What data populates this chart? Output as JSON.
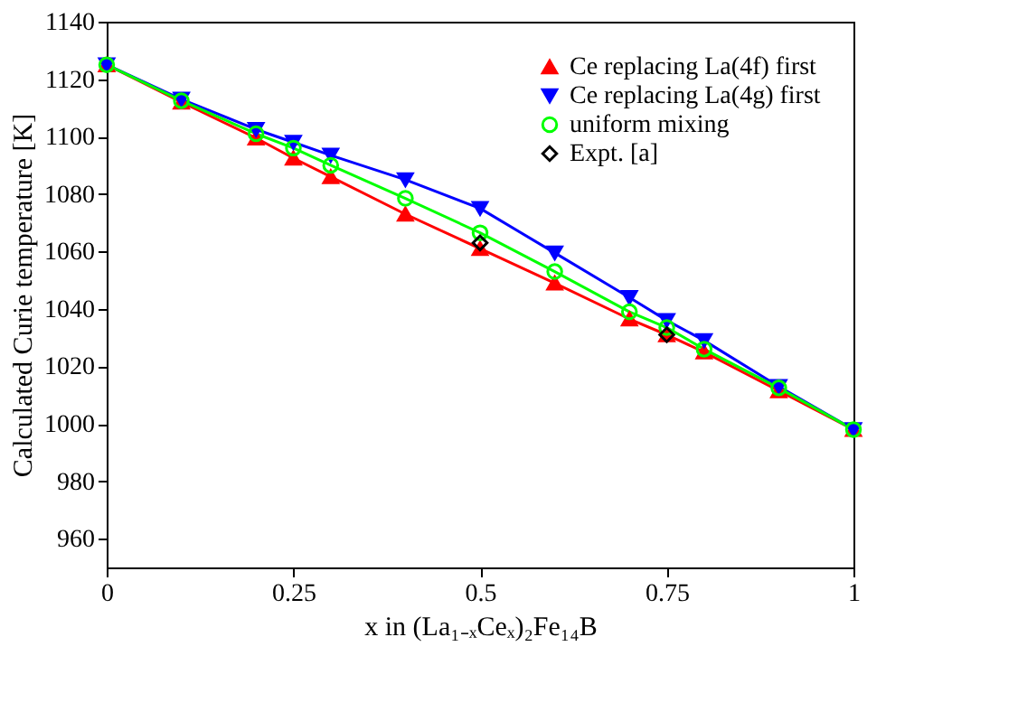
{
  "chart_data": {
    "type": "line",
    "xlabel": "x in (La₁₋ₓCeₓ)₂Fe₁₄B",
    "ylabel": "Calculated Curie temperature [K]",
    "xlim": [
      0,
      1
    ],
    "xticks": [
      0,
      0.25,
      0.5,
      0.75,
      1
    ],
    "ylim": [
      950,
      1140
    ],
    "yticks": [
      960,
      980,
      1000,
      1020,
      1040,
      1060,
      1080,
      1100,
      1120,
      1140
    ],
    "grid": false,
    "legend": "top right",
    "series": [
      {
        "name": "Ce replacing La(4f) first",
        "color": "#ff0000",
        "marker": "triangle",
        "x": [
          0,
          0.1,
          0.2,
          0.25,
          0.3,
          0.4,
          0.5,
          0.6,
          0.7,
          0.75,
          0.8,
          0.9,
          1
        ],
        "values": [
          1125,
          1112,
          1099.5,
          1092.5,
          1086,
          1073,
          1061,
          1049,
          1036.5,
          1031,
          1025,
          1011.5,
          998
        ]
      },
      {
        "name": "Ce replacing La(4g) first",
        "color": "#0000ff",
        "marker": "triangle-down",
        "x": [
          0,
          0.1,
          0.2,
          0.25,
          0.3,
          0.4,
          0.5,
          0.6,
          0.7,
          0.75,
          0.8,
          0.9,
          1
        ],
        "values": [
          1125,
          1113,
          1102.5,
          1098,
          1093.5,
          1085,
          1075,
          1059.5,
          1044,
          1036,
          1029,
          1013,
          998
        ]
      },
      {
        "name": "uniform mixing",
        "color": "#00ff00",
        "marker": "circle",
        "x": [
          0,
          0.1,
          0.2,
          0.25,
          0.3,
          0.4,
          0.5,
          0.6,
          0.7,
          0.75,
          0.8,
          0.9,
          1
        ],
        "values": [
          1125,
          1112.5,
          1101,
          1096,
          1090,
          1078.5,
          1066.5,
          1053,
          1039,
          1033.5,
          1026,
          1012.5,
          998
        ]
      },
      {
        "name": "Expt. [a]",
        "type": "scatter",
        "color": "#000000",
        "marker": "diamond",
        "x": [
          0.5,
          0.75
        ],
        "values": [
          1063,
          1031
        ]
      }
    ]
  }
}
